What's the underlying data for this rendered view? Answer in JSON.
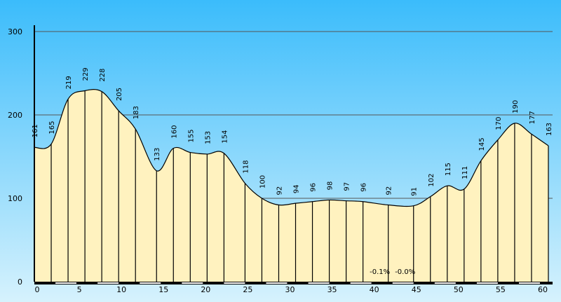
{
  "chart_data": {
    "type": "area",
    "title": "",
    "xlabel": "",
    "ylabel": "",
    "xlim": [
      0,
      61.5
    ],
    "ylim": [
      0,
      300
    ],
    "x_ticks": [
      0,
      5,
      10,
      15,
      20,
      25,
      30,
      35,
      40,
      45,
      50,
      55,
      60
    ],
    "y_ticks": [
      0,
      100,
      200,
      300
    ],
    "grid": true,
    "colors": {
      "fill": "#fff2bf",
      "line": "#000000",
      "bg_top": "#3bbcfb",
      "bg_bottom": "#d6f2fd",
      "grid": "#555555"
    },
    "points": [
      {
        "x": 0,
        "y": 161
      },
      {
        "x": 2,
        "y": 165
      },
      {
        "x": 4,
        "y": 219
      },
      {
        "x": 6,
        "y": 229
      },
      {
        "x": 8,
        "y": 228
      },
      {
        "x": 10,
        "y": 205
      },
      {
        "x": 12,
        "y": 183
      },
      {
        "x": 14.5,
        "y": 133
      },
      {
        "x": 16.5,
        "y": 160
      },
      {
        "x": 18.5,
        "y": 155
      },
      {
        "x": 20.5,
        "y": 153
      },
      {
        "x": 22.5,
        "y": 154
      },
      {
        "x": 25,
        "y": 118
      },
      {
        "x": 27,
        "y": 100
      },
      {
        "x": 29,
        "y": 92
      },
      {
        "x": 31,
        "y": 94
      },
      {
        "x": 33,
        "y": 96
      },
      {
        "x": 35,
        "y": 98
      },
      {
        "x": 37,
        "y": 97
      },
      {
        "x": 39,
        "y": 96
      },
      {
        "x": 42,
        "y": 92
      },
      {
        "x": 45,
        "y": 91
      },
      {
        "x": 47,
        "y": 102
      },
      {
        "x": 49,
        "y": 115
      },
      {
        "x": 51,
        "y": 111
      },
      {
        "x": 53,
        "y": 145
      },
      {
        "x": 55,
        "y": 170
      },
      {
        "x": 57,
        "y": 190
      },
      {
        "x": 59,
        "y": 177
      },
      {
        "x": 61,
        "y": 163
      }
    ],
    "annotations": [
      {
        "text": "-0.1%",
        "x": 41
      },
      {
        "text": "-0.0%",
        "x": 44
      }
    ]
  }
}
